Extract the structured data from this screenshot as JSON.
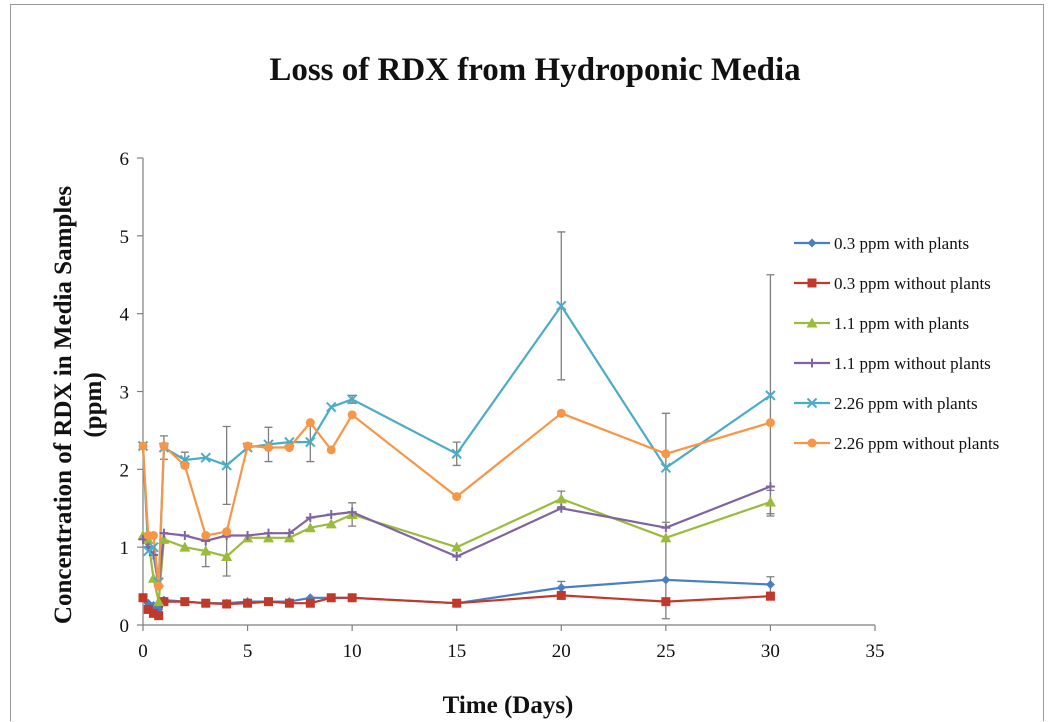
{
  "chart_data": {
    "type": "line",
    "title": "Loss of RDX from Hydroponic Media",
    "xlabel": "Time (Days)",
    "ylabel_lines": [
      "Concentration of RDX in Media Samples",
      "(ppm)"
    ],
    "xlim": [
      0,
      35
    ],
    "ylim": [
      0,
      6
    ],
    "xticks": [
      "0",
      "5",
      "10",
      "15",
      "20",
      "25",
      "30",
      "35"
    ],
    "yticks": [
      "0",
      "1",
      "2",
      "3",
      "4",
      "5",
      "6"
    ],
    "grid": false,
    "legend_position": "right",
    "series": [
      {
        "name": "0.3 ppm with plants",
        "color": "#4a7fc4",
        "marker": "diamond",
        "x": [
          0,
          0.25,
          0.5,
          0.75,
          1,
          2,
          3,
          4,
          5,
          6,
          7,
          8,
          9,
          10,
          15,
          20,
          25,
          30
        ],
        "y": [
          0.35,
          0.28,
          0.25,
          0.2,
          0.32,
          0.3,
          0.28,
          0.28,
          0.3,
          0.3,
          0.3,
          0.35,
          0.35,
          0.35,
          0.28,
          0.48,
          0.58,
          0.52
        ],
        "err": [
          0,
          0,
          0,
          0,
          0,
          0,
          0,
          0,
          0,
          0,
          0,
          0,
          0,
          0,
          0,
          0.08,
          0.5,
          0.1
        ]
      },
      {
        "name": "0.3 ppm without plants",
        "color": "#c0392b",
        "marker": "square",
        "x": [
          0,
          0.25,
          0.5,
          0.75,
          1,
          2,
          3,
          4,
          5,
          6,
          7,
          8,
          9,
          10,
          15,
          20,
          25,
          30
        ],
        "y": [
          0.35,
          0.2,
          0.15,
          0.12,
          0.3,
          0.3,
          0.28,
          0.27,
          0.28,
          0.3,
          0.28,
          0.28,
          0.35,
          0.35,
          0.28,
          0.38,
          0.3,
          0.37
        ],
        "err": [
          0,
          0,
          0,
          0,
          0,
          0,
          0,
          0,
          0,
          0,
          0,
          0,
          0,
          0,
          0,
          0,
          0,
          0
        ]
      },
      {
        "name": "1.1 ppm with plants",
        "color": "#9bbb3b",
        "marker": "triangle",
        "x": [
          0,
          0.25,
          0.5,
          0.75,
          1,
          2,
          3,
          4,
          5,
          6,
          7,
          8,
          9,
          10,
          15,
          20,
          25,
          30
        ],
        "y": [
          1.15,
          1.1,
          0.6,
          0.3,
          1.1,
          1.0,
          0.95,
          0.88,
          1.12,
          1.12,
          1.12,
          1.25,
          1.3,
          1.42,
          1.0,
          1.62,
          1.12,
          1.58
        ],
        "err": [
          0,
          0,
          0,
          0,
          0,
          0,
          0.2,
          0.25,
          0,
          0,
          0,
          0,
          0,
          0.15,
          0,
          0.1,
          0,
          0.15
        ]
      },
      {
        "name": "1.1 ppm without plants",
        "color": "#8064a2",
        "marker": "cross",
        "x": [
          0,
          0.25,
          0.5,
          0.75,
          1,
          2,
          3,
          4,
          5,
          6,
          7,
          8,
          9,
          10,
          15,
          20,
          25,
          30
        ],
        "y": [
          1.1,
          1.0,
          0.9,
          0.5,
          1.18,
          1.15,
          1.08,
          1.15,
          1.15,
          1.18,
          1.18,
          1.38,
          1.42,
          1.45,
          0.88,
          1.5,
          1.25,
          1.78
        ],
        "err": [
          0,
          0,
          0,
          0,
          0,
          0,
          0,
          0,
          0,
          0,
          0,
          0,
          0,
          0,
          0,
          0,
          0,
          0
        ]
      },
      {
        "name": "2.26 ppm with plants",
        "color": "#4bacc6",
        "marker": "x",
        "x": [
          0,
          0.25,
          0.5,
          0.75,
          1,
          2,
          3,
          4,
          5,
          6,
          7,
          8,
          9,
          10,
          15,
          20,
          25,
          30
        ],
        "y": [
          2.3,
          0.95,
          1.0,
          0.55,
          2.28,
          2.12,
          2.15,
          2.05,
          2.28,
          2.32,
          2.35,
          2.35,
          2.8,
          2.9,
          2.2,
          4.1,
          2.02,
          2.95
        ],
        "err": [
          0,
          0,
          0,
          0,
          0.15,
          0.1,
          0,
          0.5,
          0,
          0.22,
          0,
          0.25,
          0,
          0.05,
          0.15,
          0.95,
          0.7,
          1.55
        ]
      },
      {
        "name": "2.26 ppm without plants",
        "color": "#f79646",
        "marker": "circle",
        "x": [
          0,
          0.25,
          0.5,
          0.75,
          1,
          2,
          3,
          4,
          5,
          6,
          7,
          8,
          9,
          10,
          15,
          20,
          25,
          30
        ],
        "y": [
          2.3,
          1.15,
          1.15,
          0.5,
          2.3,
          2.05,
          1.15,
          1.2,
          2.3,
          2.28,
          2.28,
          2.6,
          2.25,
          2.7,
          1.65,
          2.72,
          2.2,
          2.6
        ],
        "err": [
          0,
          0,
          0,
          0,
          0,
          0,
          0,
          0,
          0,
          0,
          0,
          0,
          0,
          0,
          0,
          0,
          0,
          0
        ]
      }
    ]
  }
}
